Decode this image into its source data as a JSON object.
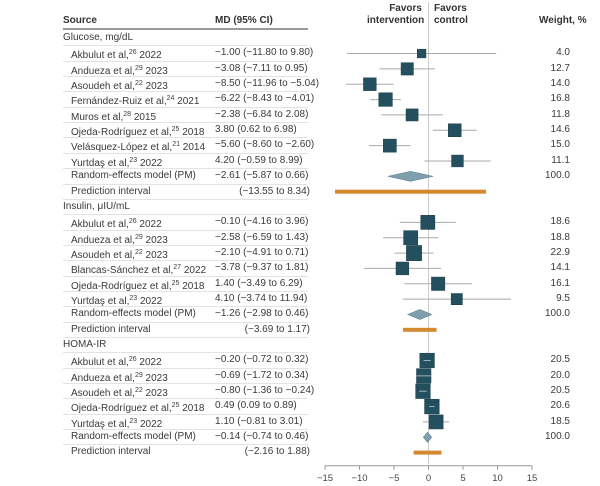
{
  "chart_data": {
    "type": "forest",
    "headers": {
      "source": "Source",
      "md": "MD (95% CI)",
      "favors_left": [
        "Favors",
        "intervention"
      ],
      "favors_right": [
        "Favors",
        "control"
      ],
      "weight": "Weight, %"
    },
    "xlabel": "MD (95% CI)",
    "xlim": [
      -15,
      15
    ],
    "xticks": [
      -15,
      -10,
      -5,
      0,
      5,
      10,
      15
    ],
    "colors": {
      "study": "#244f5e",
      "pooled": "#7f9fae",
      "prediction": "#d4892f",
      "ci_line": "#a9a9a9",
      "zero_line": "#cccccc"
    },
    "groups": [
      {
        "name": "Glucose, mg/dL",
        "studies": [
          {
            "author": "Akbulut et al,",
            "ref": "26",
            "year": "2022",
            "md": -1.0,
            "lo": -11.8,
            "hi": 9.8,
            "ci_text": "−1.00 (−11.80 to 9.80)",
            "weight": "4.0"
          },
          {
            "author": "Andueza et al,",
            "ref": "29",
            "year": "2023",
            "md": -3.08,
            "lo": -7.11,
            "hi": 0.95,
            "ci_text": "−3.08 (−7.11 to 0.95)",
            "weight": "12.7"
          },
          {
            "author": "Asoudeh et al,",
            "ref": "22",
            "year": "2023",
            "md": -8.5,
            "lo": -11.96,
            "hi": -5.04,
            "ci_text": "−8.50 (−11.96 to −5.04)",
            "weight": "14.0"
          },
          {
            "author": "Fernández-Ruiz  et al,",
            "ref": "24",
            "year": "2021",
            "md": -6.22,
            "lo": -8.43,
            "hi": -4.01,
            "ci_text": "−6.22 (−8.43 to −4.01)",
            "weight": "16.8"
          },
          {
            "author": "Muros et al,",
            "ref": "28",
            "year": "2015",
            "md": -2.38,
            "lo": -6.84,
            "hi": 2.08,
            "ci_text": "−2.38 (−6.84 to 2.08)",
            "weight": "11.8"
          },
          {
            "author": "Ojeda-Rodríguez et al,",
            "ref": "25",
            "year": "2018",
            "md": 3.8,
            "lo": 0.62,
            "hi": 6.98,
            "ci_text": "3.80 (0.62 to 6.98)",
            "weight": "14.6"
          },
          {
            "author": "Velásquez-López et al,",
            "ref": "21",
            "year": "2014",
            "md": -5.6,
            "lo": -8.6,
            "hi": -2.6,
            "ci_text": "−5.60 (−8.60 to −2.60)",
            "weight": "15.0"
          },
          {
            "author": "Yurtdaş et al,",
            "ref": "23",
            "year": "2022",
            "md": 4.2,
            "lo": -0.59,
            "hi": 8.99,
            "ci_text": "4.20 (−0.59 to 8.99)",
            "weight": "11.1"
          }
        ],
        "pooled": {
          "label": "Random-effects model (PM)",
          "md": -2.61,
          "lo": -5.87,
          "hi": 0.66,
          "ci_text": "−2.61 (−5.87 to 0.66)",
          "weight": "100.0"
        },
        "prediction": {
          "label": "Prediction interval",
          "lo": -13.55,
          "hi": 8.34,
          "ci_text": "(−13.55 to 8.34)"
        }
      },
      {
        "name": "Insulin, μIU/mL",
        "studies": [
          {
            "author": "Akbulut et al,",
            "ref": "26",
            "year": "2022",
            "md": -0.1,
            "lo": -4.16,
            "hi": 3.96,
            "ci_text": "−0.10 (−4.16 to 3.96)",
            "weight": "18.6"
          },
          {
            "author": "Andueza et al,",
            "ref": "29",
            "year": "2023",
            "md": -2.58,
            "lo": -6.59,
            "hi": 1.43,
            "ci_text": "−2.58 (−6.59 to 1.43)",
            "weight": "18.8"
          },
          {
            "author": "Asoudeh et al,",
            "ref": "22",
            "year": "2023",
            "md": -2.1,
            "lo": -4.91,
            "hi": 0.71,
            "ci_text": "−2.10 (−4.91 to 0.71)",
            "weight": "22.9"
          },
          {
            "author": "Blancas-Sánchez et al,",
            "ref": "27",
            "year": "2022",
            "md": -3.78,
            "lo": -9.37,
            "hi": 1.81,
            "ci_text": "−3.78 (−9.37 to 1.81)",
            "weight": "14.1"
          },
          {
            "author": "Ojeda-Rodríguez et al,",
            "ref": "25",
            "year": "2018",
            "md": 1.4,
            "lo": -3.49,
            "hi": 6.29,
            "ci_text": "1.40 (−3.49 to 6.29)",
            "weight": "16.1"
          },
          {
            "author": "Yurtdaş et al,",
            "ref": "23",
            "year": "2022",
            "md": 4.1,
            "lo": -3.74,
            "hi": 11.94,
            "ci_text": "4.10 (−3.74 to 11.94)",
            "weight": "9.5"
          }
        ],
        "pooled": {
          "label": "Random-effects model (PM)",
          "md": -1.26,
          "lo": -2.98,
          "hi": 0.46,
          "ci_text": "−1.26 (−2.98 to 0.46)",
          "weight": "100.0"
        },
        "prediction": {
          "label": "Prediction interval",
          "lo": -3.69,
          "hi": 1.17,
          "ci_text": "(−3.69 to 1.17)"
        }
      },
      {
        "name": "HOMA-IR",
        "studies": [
          {
            "author": "Akbulut et al,",
            "ref": "26",
            "year": "2022",
            "md": -0.2,
            "lo": -0.72,
            "hi": 0.32,
            "ci_text": "−0.20 (−0.72 to 0.32)",
            "weight": "20.5"
          },
          {
            "author": "Andueza et al,",
            "ref": "29",
            "year": "2023",
            "md": -0.69,
            "lo": -1.72,
            "hi": 0.34,
            "ci_text": "−0.69 (−1.72 to 0.34)",
            "weight": "20.0"
          },
          {
            "author": "Asoudeh et al,",
            "ref": "22",
            "year": "2023",
            "md": -0.8,
            "lo": -1.36,
            "hi": -0.24,
            "ci_text": "−0.80 (−1.36 to −0.24)",
            "weight": "20.5"
          },
          {
            "author": "Ojeda-Rodríguez et al,",
            "ref": "25",
            "year": "2018",
            "md": 0.49,
            "lo": 0.09,
            "hi": 0.89,
            "ci_text": "0.49 (0.09 to 0.89)",
            "weight": "20.6"
          },
          {
            "author": "Yurtdaş et al,",
            "ref": "23",
            "year": "2022",
            "md": 1.1,
            "lo": -0.81,
            "hi": 3.01,
            "ci_text": "1.10 (−0.81 to 3.01)",
            "weight": "18.5"
          }
        ],
        "pooled": {
          "label": "Random-effects model (PM)",
          "md": -0.14,
          "lo": -0.74,
          "hi": 0.46,
          "ci_text": "−0.14 (−0.74 to 0.46)",
          "weight": "100.0"
        },
        "prediction": {
          "label": "Prediction interval",
          "lo": -2.16,
          "hi": 1.88,
          "ci_text": "(−2.16 to 1.88)"
        }
      }
    ]
  }
}
